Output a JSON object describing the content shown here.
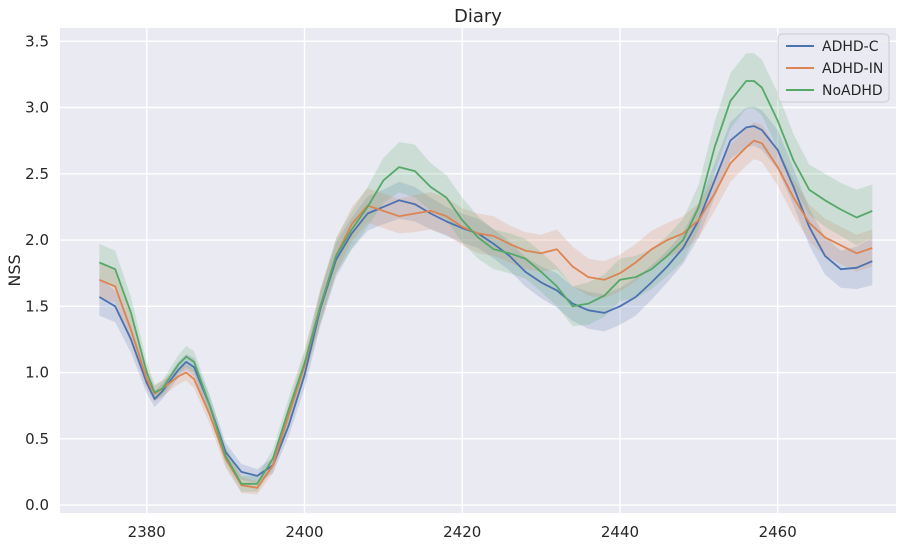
{
  "chart_data": {
    "type": "line",
    "title": "Diary",
    "xlabel": "",
    "ylabel": "NSS",
    "xlim": [
      2369,
      2475
    ],
    "ylim": [
      -0.06,
      3.6
    ],
    "xticks": [
      2380,
      2400,
      2420,
      2440,
      2460
    ],
    "yticks": [
      0.0,
      0.5,
      1.0,
      1.5,
      2.0,
      2.5,
      3.0,
      3.5
    ],
    "xtick_labels": [
      "2380",
      "2400",
      "2420",
      "2440",
      "2460"
    ],
    "ytick_labels": [
      "0.0",
      "0.5",
      "1.0",
      "1.5",
      "2.0",
      "2.5",
      "3.0",
      "3.5"
    ],
    "grid": true,
    "legend_position": "top-right",
    "background_color": "#eaeaf2",
    "x": [
      2374,
      2376,
      2378,
      2380,
      2381,
      2382,
      2384,
      2385,
      2386,
      2388,
      2390,
      2392,
      2394,
      2396,
      2398,
      2400,
      2402,
      2404,
      2406,
      2408,
      2410,
      2412,
      2414,
      2416,
      2418,
      2420,
      2422,
      2424,
      2426,
      2428,
      2430,
      2432,
      2434,
      2436,
      2438,
      2440,
      2442,
      2444,
      2446,
      2448,
      2450,
      2452,
      2454,
      2456,
      2457,
      2458,
      2460,
      2462,
      2464,
      2466,
      2468,
      2470,
      2472
    ],
    "series": [
      {
        "name": "ADHD-C",
        "color": "#4c72b0",
        "values": [
          1.57,
          1.5,
          1.25,
          0.92,
          0.8,
          0.86,
          1.02,
          1.08,
          1.04,
          0.75,
          0.4,
          0.25,
          0.22,
          0.3,
          0.6,
          0.98,
          1.48,
          1.85,
          2.05,
          2.2,
          2.25,
          2.3,
          2.27,
          2.2,
          2.14,
          2.09,
          2.05,
          1.97,
          1.88,
          1.76,
          1.68,
          1.62,
          1.52,
          1.47,
          1.45,
          1.5,
          1.57,
          1.68,
          1.8,
          1.94,
          2.15,
          2.45,
          2.75,
          2.85,
          2.86,
          2.83,
          2.68,
          2.4,
          2.1,
          1.88,
          1.78,
          1.79,
          1.84
        ],
        "ci_lower": [
          1.43,
          1.38,
          1.15,
          0.84,
          0.74,
          0.8,
          0.96,
          1.02,
          0.97,
          0.68,
          0.33,
          0.19,
          0.17,
          0.24,
          0.52,
          0.88,
          1.35,
          1.72,
          1.93,
          2.07,
          2.12,
          2.16,
          2.14,
          2.08,
          2.03,
          1.98,
          1.94,
          1.86,
          1.77,
          1.65,
          1.56,
          1.49,
          1.39,
          1.33,
          1.31,
          1.36,
          1.43,
          1.55,
          1.68,
          1.82,
          2.02,
          2.32,
          2.61,
          2.7,
          2.71,
          2.68,
          2.53,
          2.26,
          1.96,
          1.74,
          1.64,
          1.63,
          1.66
        ],
        "ci_upper": [
          1.71,
          1.62,
          1.35,
          1.0,
          0.86,
          0.92,
          1.08,
          1.14,
          1.11,
          0.82,
          0.47,
          0.31,
          0.27,
          0.36,
          0.68,
          1.08,
          1.61,
          1.98,
          2.17,
          2.33,
          2.38,
          2.44,
          2.4,
          2.32,
          2.25,
          2.2,
          2.16,
          2.08,
          1.99,
          1.87,
          1.8,
          1.75,
          1.65,
          1.61,
          1.59,
          1.64,
          1.71,
          1.81,
          1.92,
          2.06,
          2.28,
          2.58,
          2.89,
          3.0,
          3.01,
          2.98,
          2.83,
          2.54,
          2.24,
          2.02,
          1.92,
          1.95,
          2.02
        ]
      },
      {
        "name": "ADHD-IN",
        "color": "#dd8452",
        "values": [
          1.7,
          1.65,
          1.32,
          0.95,
          0.84,
          0.88,
          0.97,
          1.0,
          0.95,
          0.68,
          0.35,
          0.15,
          0.13,
          0.3,
          0.68,
          1.05,
          1.5,
          1.88,
          2.12,
          2.26,
          2.22,
          2.18,
          2.2,
          2.22,
          2.18,
          2.1,
          2.05,
          2.03,
          1.97,
          1.92,
          1.9,
          1.93,
          1.8,
          1.72,
          1.7,
          1.75,
          1.83,
          1.93,
          2.0,
          2.05,
          2.15,
          2.35,
          2.58,
          2.7,
          2.75,
          2.73,
          2.55,
          2.32,
          2.13,
          2.02,
          1.96,
          1.9,
          1.94
        ],
        "ci_lower": [
          1.56,
          1.53,
          1.22,
          0.87,
          0.78,
          0.82,
          0.91,
          0.94,
          0.88,
          0.61,
          0.28,
          0.09,
          0.08,
          0.24,
          0.6,
          0.95,
          1.37,
          1.75,
          1.99,
          2.13,
          2.09,
          2.05,
          2.06,
          2.08,
          2.04,
          1.96,
          1.9,
          1.88,
          1.83,
          1.78,
          1.76,
          1.78,
          1.65,
          1.58,
          1.56,
          1.61,
          1.69,
          1.79,
          1.87,
          1.92,
          2.02,
          2.22,
          2.44,
          2.56,
          2.61,
          2.59,
          2.41,
          2.18,
          1.99,
          1.88,
          1.82,
          1.76,
          1.8
        ],
        "ci_upper": [
          1.84,
          1.77,
          1.42,
          1.03,
          0.9,
          0.94,
          1.03,
          1.06,
          1.02,
          0.75,
          0.42,
          0.21,
          0.18,
          0.36,
          0.76,
          1.15,
          1.63,
          2.01,
          2.25,
          2.39,
          2.35,
          2.31,
          2.34,
          2.36,
          2.32,
          2.24,
          2.2,
          2.18,
          2.11,
          2.06,
          2.04,
          2.08,
          1.95,
          1.86,
          1.84,
          1.89,
          1.97,
          2.07,
          2.13,
          2.18,
          2.28,
          2.48,
          2.72,
          2.84,
          2.89,
          2.87,
          2.69,
          2.46,
          2.27,
          2.16,
          2.1,
          2.04,
          2.08
        ]
      },
      {
        "name": "NoADHD",
        "color": "#55a868",
        "values": [
          1.83,
          1.78,
          1.45,
          1.0,
          0.85,
          0.88,
          1.06,
          1.12,
          1.08,
          0.75,
          0.37,
          0.16,
          0.16,
          0.35,
          0.72,
          1.07,
          1.5,
          1.88,
          2.08,
          2.25,
          2.45,
          2.55,
          2.52,
          2.4,
          2.32,
          2.15,
          2.02,
          1.93,
          1.9,
          1.86,
          1.76,
          1.65,
          1.5,
          1.52,
          1.58,
          1.7,
          1.72,
          1.78,
          1.88,
          2.0,
          2.25,
          2.7,
          3.05,
          3.2,
          3.2,
          3.15,
          2.9,
          2.6,
          2.38,
          2.3,
          2.23,
          2.17,
          2.22
        ],
        "ci_lower": [
          1.69,
          1.64,
          1.33,
          0.92,
          0.79,
          0.82,
          0.99,
          1.04,
          1.0,
          0.67,
          0.3,
          0.1,
          0.1,
          0.28,
          0.63,
          0.97,
          1.38,
          1.75,
          1.94,
          2.1,
          2.28,
          2.36,
          2.32,
          2.22,
          2.15,
          1.98,
          1.86,
          1.78,
          1.75,
          1.71,
          1.61,
          1.5,
          1.35,
          1.36,
          1.42,
          1.54,
          1.56,
          1.63,
          1.73,
          1.84,
          2.08,
          2.51,
          2.84,
          2.99,
          2.99,
          2.94,
          2.69,
          2.4,
          2.19,
          2.1,
          2.03,
          1.96,
          2.02
        ],
        "ci_upper": [
          1.97,
          1.92,
          1.57,
          1.08,
          0.91,
          0.94,
          1.13,
          1.2,
          1.16,
          0.83,
          0.44,
          0.22,
          0.22,
          0.42,
          0.81,
          1.17,
          1.62,
          2.01,
          2.22,
          2.4,
          2.62,
          2.74,
          2.72,
          2.58,
          2.49,
          2.32,
          2.18,
          2.08,
          2.05,
          2.01,
          1.91,
          1.8,
          1.65,
          1.68,
          1.74,
          1.86,
          1.88,
          1.93,
          2.03,
          2.16,
          2.42,
          2.89,
          3.26,
          3.41,
          3.41,
          3.36,
          3.11,
          2.8,
          2.57,
          2.5,
          2.43,
          2.38,
          2.42
        ]
      }
    ]
  }
}
